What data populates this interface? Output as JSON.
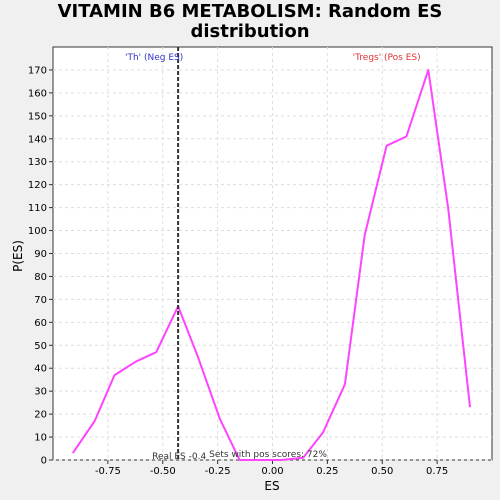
{
  "chart_data": {
    "type": "line",
    "title_line1": "VITAMIN B6 METABOLISM: Random ES",
    "title_line2": "distribution",
    "xlabel": "ES",
    "ylabel": "P(ES)",
    "xlim": [
      -1.0,
      1.0
    ],
    "ylim": [
      0,
      180
    ],
    "xticks": [
      -0.75,
      -0.5,
      -0.25,
      0.0,
      0.25,
      0.5,
      0.75
    ],
    "xtick_labels": [
      "-0.75",
      "-0.50",
      "-0.25",
      "0.00",
      "0.25",
      "0.50",
      "0.75"
    ],
    "yticks": [
      0,
      10,
      20,
      30,
      40,
      50,
      60,
      70,
      80,
      90,
      100,
      110,
      120,
      130,
      140,
      150,
      160,
      170
    ],
    "grid": true,
    "line_color": "#ff44ff",
    "series": [
      {
        "x": [
          -0.91,
          -0.81,
          -0.72,
          -0.62,
          -0.53,
          -0.43,
          -0.34,
          -0.24,
          -0.15,
          -0.05,
          0.04,
          0.14,
          0.23,
          0.33,
          0.42,
          0.52,
          0.61,
          0.71,
          0.8,
          0.9
        ],
        "values": [
          3,
          17,
          37,
          43,
          47,
          67,
          45,
          18,
          0,
          0,
          0,
          1,
          12,
          33,
          98,
          137,
          141,
          170,
          110,
          23
        ]
      }
    ],
    "real_es": -0.43,
    "real_es_label": "Real ES -0.4",
    "neg_label": "'Th' (Neg ES)",
    "neg_color": "#3333cc",
    "pos_label": "'Tregs' (Pos ES)",
    "pos_color": "#dd3333",
    "pos_scores_label": "Sets with pos scores: 72%"
  }
}
